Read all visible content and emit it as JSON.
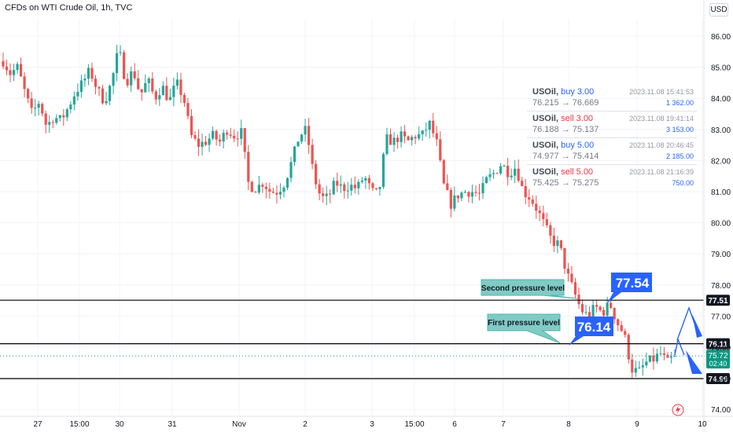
{
  "header": {
    "title": "CFDs on WTI Crude Oil, 1h, TVC",
    "currency": "USD"
  },
  "colors": {
    "up": "#26a69a",
    "down": "#ef5350",
    "level_line": "#000000",
    "callout_teal": "#80cbc4",
    "callout_text": "#131722",
    "price_box_blue": "#2962ff",
    "arrow_blue": "#2962ff",
    "last_price_green": "#089981"
  },
  "orders": [
    {
      "symbol": "USOil,",
      "side": "buy 3.00",
      "side_type": "buy",
      "prices": "76.215 → 76.669",
      "time": "2023.11.08 15:41:53",
      "amount": "1 362.00"
    },
    {
      "symbol": "USOil,",
      "side": "sell 3.00",
      "side_type": "sell",
      "prices": "76.188 → 75.137",
      "time": "2023.11.08 19:41:14",
      "amount": "3 153.00"
    },
    {
      "symbol": "USOil,",
      "side": "buy 5.00",
      "side_type": "buy",
      "prices": "74.977 → 75.414",
      "time": "2023.11.08 20:46:45",
      "amount": "2 185.00"
    },
    {
      "symbol": "USOil,",
      "side": "sell 5.00",
      "side_type": "sell",
      "prices": "75.425 → 75.275",
      "time": "2023.11.08 21:16:39",
      "amount": "750.00"
    }
  ],
  "annotations": {
    "second_label": "Second pressure level",
    "first_label": "First pressure level",
    "upper_price_box": "77.54",
    "lower_price_box": "76.14"
  },
  "last_price": {
    "value": "75.72",
    "countdown": "02:40",
    "y": 75.72
  },
  "chart_data": {
    "type": "candlestick",
    "title": "CFDs on WTI Crude Oil, 1h, TVC",
    "ylim": [
      73.72,
      86.4
    ],
    "y_ticks": [
      "74.00",
      "75.00",
      "76.00",
      "77.00",
      "78.00",
      "79.00",
      "80.00",
      "81.00",
      "82.00",
      "83.00",
      "84.00",
      "85.00",
      "86.00"
    ],
    "x_ticks": [
      "27",
      "15:00",
      "30",
      "31",
      "Nov",
      "2",
      "3",
      "15:00",
      "6",
      "7",
      "8",
      "9",
      "10"
    ],
    "levels": [
      {
        "name": "second-pressure-level",
        "value": 77.51,
        "label": "77.51"
      },
      {
        "name": "first-pressure-level",
        "value": 76.11,
        "label": "76.11"
      },
      {
        "name": "support-level",
        "value": 74.99,
        "label": "74.99"
      }
    ],
    "keypoints": [
      {
        "price": 85.2
      },
      {
        "price": 84.8
      },
      {
        "price": 85.0
      },
      {
        "price": 84.2
      },
      {
        "price": 83.5
      },
      {
        "price": 83.9
      },
      {
        "price": 83.1
      },
      {
        "price": 83.4
      },
      {
        "price": 83.3
      },
      {
        "price": 83.7
      },
      {
        "price": 84.2
      },
      {
        "price": 84.5
      },
      {
        "price": 84.9
      },
      {
        "price": 84.3
      },
      {
        "price": 83.9
      },
      {
        "price": 84.5
      },
      {
        "price": 85.6
      },
      {
        "price": 84.5
      },
      {
        "price": 84.9
      },
      {
        "price": 84.1
      },
      {
        "price": 84.6
      },
      {
        "price": 84.0
      },
      {
        "price": 84.4
      },
      {
        "price": 83.9
      },
      {
        "price": 84.5
      },
      {
        "price": 84.0
      },
      {
        "price": 82.8
      },
      {
        "price": 82.5
      },
      {
        "price": 82.6
      },
      {
        "price": 82.8
      },
      {
        "price": 82.6
      },
      {
        "price": 83.0
      },
      {
        "price": 82.8
      },
      {
        "price": 82.9
      },
      {
        "price": 81.2
      },
      {
        "price": 81.1
      },
      {
        "price": 81.3
      },
      {
        "price": 81.0
      },
      {
        "price": 81.0
      },
      {
        "price": 81.3
      },
      {
        "price": 82.0
      },
      {
        "price": 82.8
      },
      {
        "price": 83.0
      },
      {
        "price": 81.5
      },
      {
        "price": 80.8
      },
      {
        "price": 80.8
      },
      {
        "price": 81.3
      },
      {
        "price": 81.1
      },
      {
        "price": 81.2
      },
      {
        "price": 81.1
      },
      {
        "price": 81.5
      },
      {
        "price": 81.0
      },
      {
        "price": 80.9
      },
      {
        "price": 82.7
      },
      {
        "price": 82.6
      },
      {
        "price": 82.8
      },
      {
        "price": 82.6
      },
      {
        "price": 82.8
      },
      {
        "price": 82.8
      },
      {
        "price": 83.2
      },
      {
        "price": 82.6
      },
      {
        "price": 81.2
      },
      {
        "price": 80.6
      },
      {
        "price": 80.9
      },
      {
        "price": 81.0
      },
      {
        "price": 81.0
      },
      {
        "price": 80.9
      },
      {
        "price": 81.4
      },
      {
        "price": 81.6
      },
      {
        "price": 81.9
      },
      {
        "price": 81.6
      },
      {
        "price": 81.8
      },
      {
        "price": 81.0
      },
      {
        "price": 80.8
      },
      {
        "price": 80.4
      },
      {
        "price": 79.9
      },
      {
        "price": 79.4
      },
      {
        "price": 79.3
      },
      {
        "price": 78.4
      },
      {
        "price": 77.8
      },
      {
        "price": 77.2
      },
      {
        "price": 77.0
      },
      {
        "price": 77.3
      },
      {
        "price": 77.1
      },
      {
        "price": 77.4
      },
      {
        "price": 76.8
      },
      {
        "price": 76.4
      },
      {
        "price": 75.3
      },
      {
        "price": 75.2
      },
      {
        "price": 75.5
      },
      {
        "price": 75.6
      },
      {
        "price": 75.8
      },
      {
        "price": 75.5
      },
      {
        "price": 75.72
      }
    ]
  }
}
